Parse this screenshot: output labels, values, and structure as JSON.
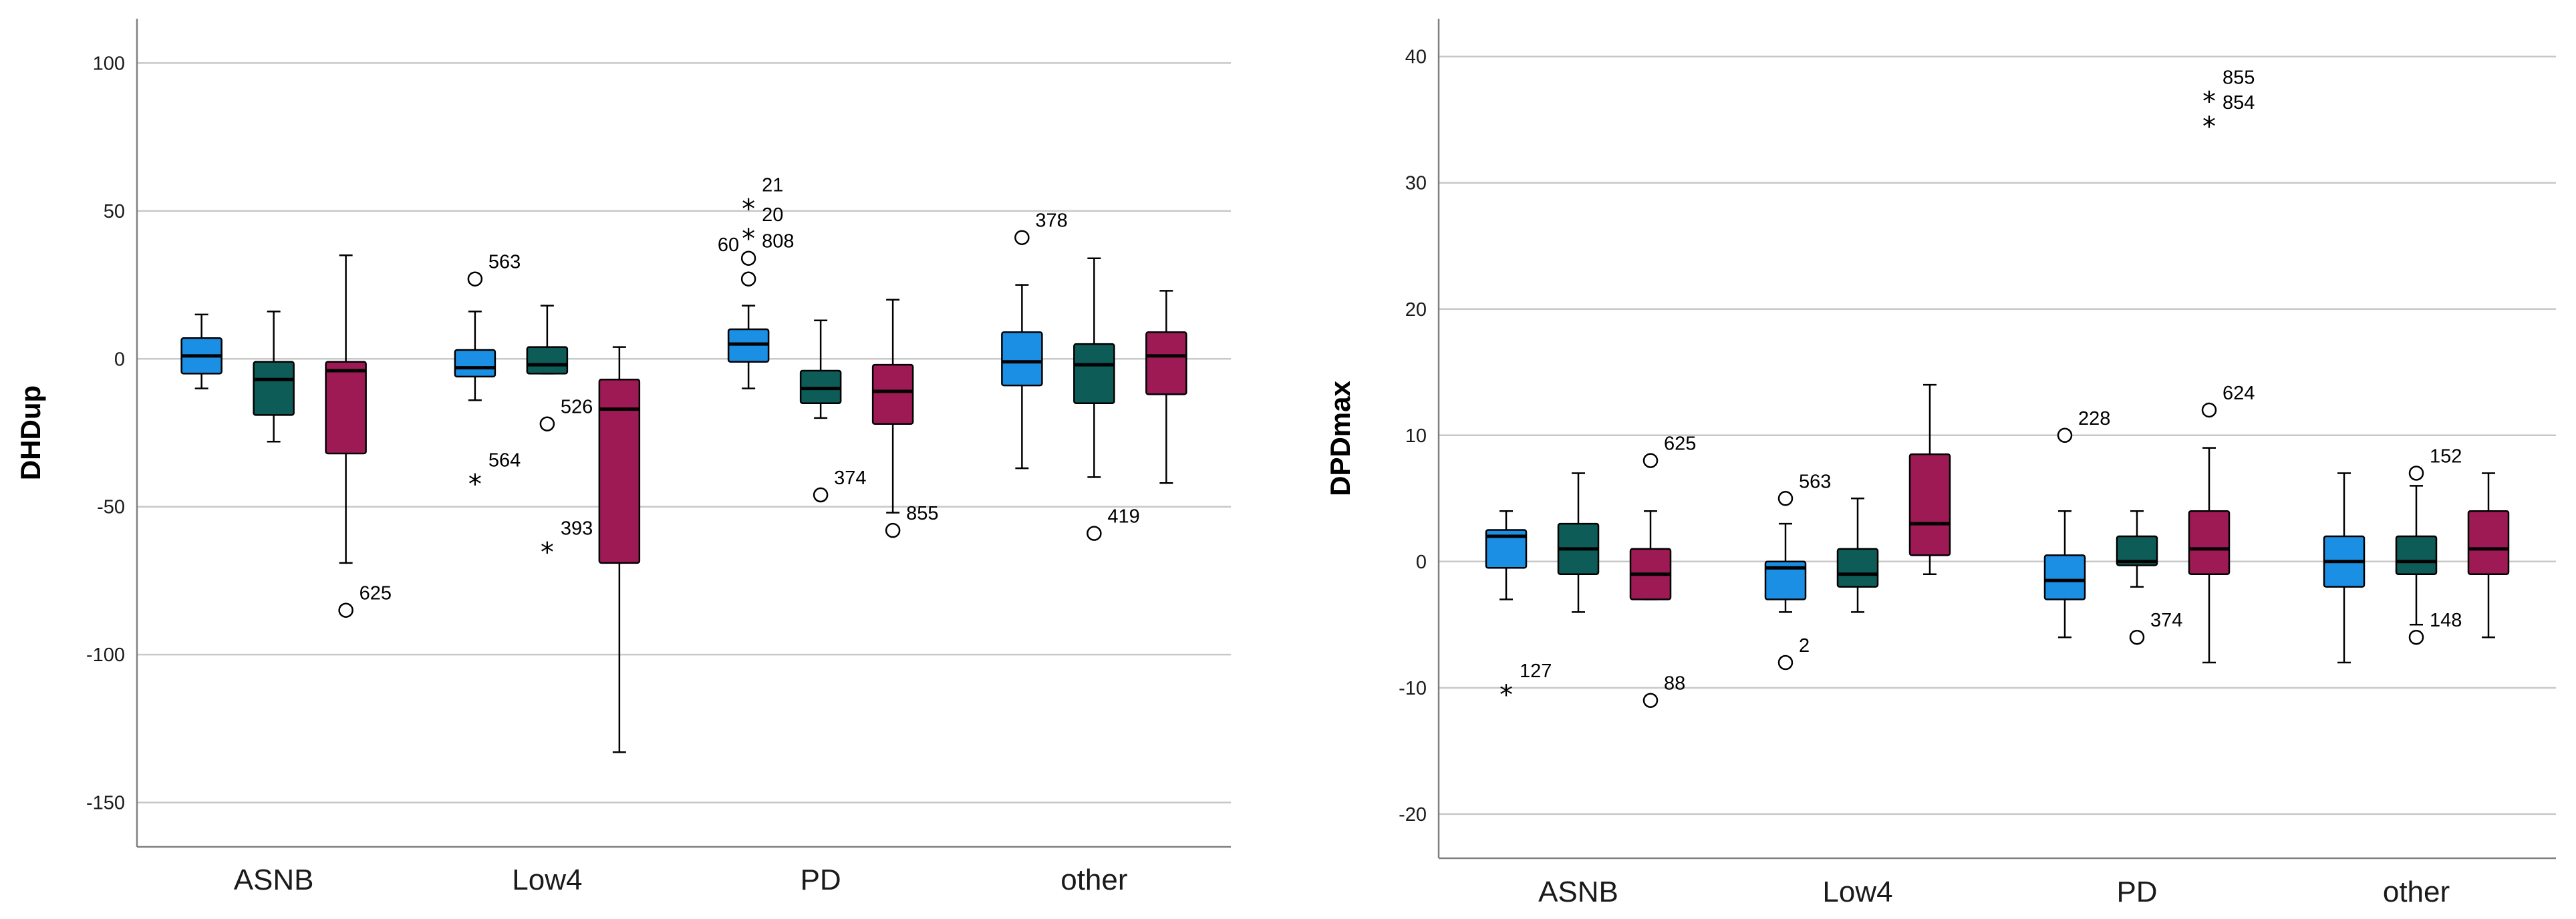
{
  "colors": {
    "group1": "#1a8fe3",
    "group2": "#0d5c57",
    "group3": "#9e1a55",
    "grid": "#c8c8c8",
    "axis": "#808080"
  },
  "chart_data": [
    {
      "type": "boxplot",
      "ylabel": "DHDup",
      "ylim": [
        -165,
        115
      ],
      "yticks": [
        100,
        50,
        0,
        -50,
        -100,
        -150
      ],
      "categories": [
        "ASNB",
        "Low4",
        "PD",
        "other"
      ],
      "boxes": [
        {
          "cat": 0,
          "series": 0,
          "min": -10,
          "q1": -5,
          "median": 1,
          "q3": 7,
          "max": 15
        },
        {
          "cat": 0,
          "series": 1,
          "min": -28,
          "q1": -19,
          "median": -7,
          "q3": -1,
          "max": 16
        },
        {
          "cat": 0,
          "series": 2,
          "min": -69,
          "q1": -32,
          "median": -4,
          "q3": -1,
          "max": 35
        },
        {
          "cat": 1,
          "series": 0,
          "min": -14,
          "q1": -6,
          "median": -3,
          "q3": 3,
          "max": 16
        },
        {
          "cat": 1,
          "series": 1,
          "min": -5,
          "q1": -5,
          "median": -2,
          "q3": 4,
          "max": 18
        },
        {
          "cat": 1,
          "series": 2,
          "min": -133,
          "q1": -69,
          "median": -17,
          "q3": -7,
          "max": 4
        },
        {
          "cat": 2,
          "series": 0,
          "min": -10,
          "q1": -1,
          "median": 5,
          "q3": 10,
          "max": 18
        },
        {
          "cat": 2,
          "series": 1,
          "min": -20,
          "q1": -15,
          "median": -10,
          "q3": -4,
          "max": 13
        },
        {
          "cat": 2,
          "series": 2,
          "min": -52,
          "q1": -22,
          "median": -11,
          "q3": -2,
          "max": 20
        },
        {
          "cat": 3,
          "series": 0,
          "min": -37,
          "q1": -9,
          "median": -1,
          "q3": 9,
          "max": 25
        },
        {
          "cat": 3,
          "series": 1,
          "min": -40,
          "q1": -15,
          "median": -2,
          "q3": 5,
          "max": 34
        },
        {
          "cat": 3,
          "series": 2,
          "min": -42,
          "q1": -12,
          "median": 1,
          "q3": 9,
          "max": 23
        }
      ],
      "outliers": [
        {
          "cat": 0,
          "series": 2,
          "value": -85,
          "label": "625",
          "marker": "circle"
        },
        {
          "cat": 1,
          "series": 0,
          "value": 27,
          "label": "563",
          "marker": "circle"
        },
        {
          "cat": 1,
          "series": 0,
          "value": -40,
          "label": "564",
          "marker": "star"
        },
        {
          "cat": 1,
          "series": 1,
          "value": -22,
          "label": "526",
          "marker": "circle"
        },
        {
          "cat": 1,
          "series": 1,
          "value": -63,
          "label": "393",
          "marker": "star"
        },
        {
          "cat": 2,
          "series": 0,
          "value": 53,
          "label": "21",
          "marker": "star"
        },
        {
          "cat": 2,
          "series": 0,
          "value": 43,
          "label": "20",
          "marker": "star"
        },
        {
          "cat": 2,
          "series": 0,
          "value": 34,
          "label": "808",
          "marker": "circle"
        },
        {
          "cat": 2,
          "series": 0,
          "value": 27,
          "label": "",
          "marker": "circle"
        },
        {
          "cat": 2,
          "series": 1,
          "value": -46,
          "label": "374",
          "marker": "circle"
        },
        {
          "cat": 2,
          "series": 2,
          "value": -58,
          "label": "855",
          "marker": "circle"
        },
        {
          "cat": 3,
          "series": 0,
          "value": 41,
          "label": "378",
          "marker": "circle"
        },
        {
          "cat": 3,
          "series": 1,
          "value": -59,
          "label": "419",
          "marker": "circle"
        }
      ],
      "extra_labels": [
        {
          "cat": 2,
          "series": 0,
          "value": 40,
          "label": "60"
        }
      ]
    },
    {
      "type": "boxplot",
      "ylabel": "DPDmax",
      "ylim": [
        -23.5,
        43
      ],
      "yticks": [
        40,
        30,
        20,
        10,
        0,
        -10,
        -20
      ],
      "categories": [
        "ASNB",
        "Low4",
        "PD",
        "other"
      ],
      "boxes": [
        {
          "cat": 0,
          "series": 0,
          "min": -3,
          "q1": -0.5,
          "median": 2,
          "q3": 2.5,
          "max": 4
        },
        {
          "cat": 0,
          "series": 1,
          "min": -4,
          "q1": -1,
          "median": 1,
          "q3": 3,
          "max": 7
        },
        {
          "cat": 0,
          "series": 2,
          "min": -3,
          "q1": -3,
          "median": -1,
          "q3": 1,
          "max": 4
        },
        {
          "cat": 1,
          "series": 0,
          "min": -4,
          "q1": -3,
          "median": -0.5,
          "q3": 0,
          "max": 3
        },
        {
          "cat": 1,
          "series": 1,
          "min": -4,
          "q1": -2,
          "median": -1,
          "q3": 1,
          "max": 5
        },
        {
          "cat": 1,
          "series": 2,
          "min": -1,
          "q1": 0.5,
          "median": 3,
          "q3": 8.5,
          "max": 14
        },
        {
          "cat": 2,
          "series": 0,
          "min": -6,
          "q1": -3,
          "median": -1.5,
          "q3": 0.5,
          "max": 4
        },
        {
          "cat": 2,
          "series": 1,
          "min": -2,
          "q1": -0.3,
          "median": 0,
          "q3": 2,
          "max": 4
        },
        {
          "cat": 2,
          "series": 2,
          "min": -8,
          "q1": -1,
          "median": 1,
          "q3": 4,
          "max": 9
        },
        {
          "cat": 3,
          "series": 0,
          "min": -8,
          "q1": -2,
          "median": 0,
          "q3": 2,
          "max": 7
        },
        {
          "cat": 3,
          "series": 1,
          "min": -5,
          "q1": -1,
          "median": 0,
          "q3": 2,
          "max": 6
        },
        {
          "cat": 3,
          "series": 2,
          "min": -6,
          "q1": -1,
          "median": 1,
          "q3": 4,
          "max": 7
        }
      ],
      "outliers": [
        {
          "cat": 0,
          "series": 0,
          "value": -10,
          "label": "127",
          "marker": "star"
        },
        {
          "cat": 0,
          "series": 2,
          "value": 8,
          "label": "625",
          "marker": "circle"
        },
        {
          "cat": 0,
          "series": 2,
          "value": -11,
          "label": "88",
          "marker": "circle"
        },
        {
          "cat": 1,
          "series": 0,
          "value": 5,
          "label": "563",
          "marker": "circle"
        },
        {
          "cat": 1,
          "series": 0,
          "value": -8,
          "label": "2",
          "marker": "circle"
        },
        {
          "cat": 2,
          "series": 0,
          "value": 10,
          "label": "228",
          "marker": "circle"
        },
        {
          "cat": 2,
          "series": 1,
          "value": -6,
          "label": "374",
          "marker": "circle"
        },
        {
          "cat": 2,
          "series": 2,
          "value": 37,
          "label": "855",
          "marker": "star"
        },
        {
          "cat": 2,
          "series": 2,
          "value": 35,
          "label": "854",
          "marker": "star"
        },
        {
          "cat": 2,
          "series": 2,
          "value": 12,
          "label": "624",
          "marker": "circle"
        },
        {
          "cat": 3,
          "series": 1,
          "value": 7,
          "label": "152",
          "marker": "circle"
        },
        {
          "cat": 3,
          "series": 1,
          "value": -6,
          "label": "148",
          "marker": "circle"
        }
      ],
      "extra_labels": []
    }
  ]
}
